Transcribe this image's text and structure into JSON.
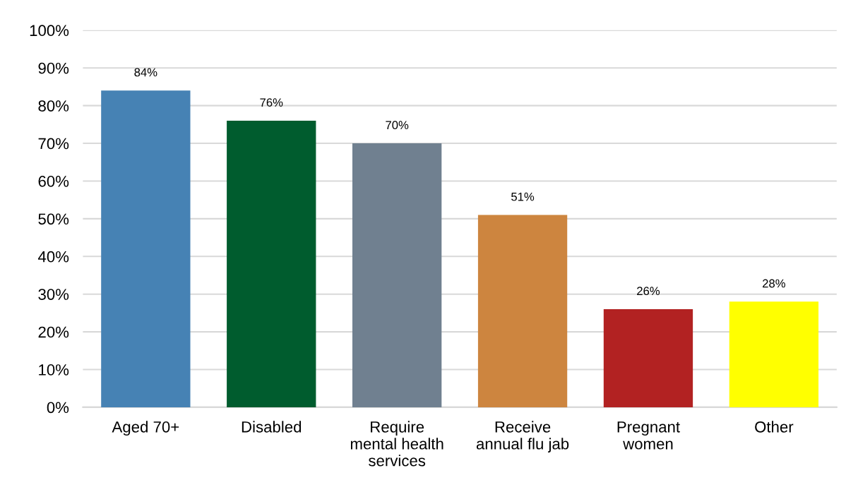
{
  "chart_data": {
    "type": "bar",
    "categories": [
      "Aged 70+",
      "Disabled",
      "Require\nmental health\nservices",
      "Receive\nannual flu jab",
      "Pregnant\nwomen",
      "Other"
    ],
    "values": [
      84,
      76,
      70,
      51,
      26,
      28
    ],
    "colors": [
      "#4682b4",
      "#005c2e",
      "#708090",
      "#cd853f",
      "#b22222",
      "#ffff00"
    ],
    "ylim": [
      0,
      100
    ],
    "yticks": [
      {
        "value": 0,
        "label": "0%"
      },
      {
        "value": 10,
        "label": "10%"
      },
      {
        "value": 20,
        "label": "20%"
      },
      {
        "value": 30,
        "label": "30%"
      },
      {
        "value": 40,
        "label": "40%"
      },
      {
        "value": 50,
        "label": "50%"
      },
      {
        "value": 60,
        "label": "60%"
      },
      {
        "value": 70,
        "label": "70%"
      },
      {
        "value": 80,
        "label": "80%"
      },
      {
        "value": 90,
        "label": "90%"
      },
      {
        "value": 100,
        "label": "100%"
      }
    ],
    "value_labels": [
      "84%",
      "76%",
      "70%",
      "51%",
      "26%",
      "28%"
    ],
    "grid": "y",
    "legend": false
  }
}
